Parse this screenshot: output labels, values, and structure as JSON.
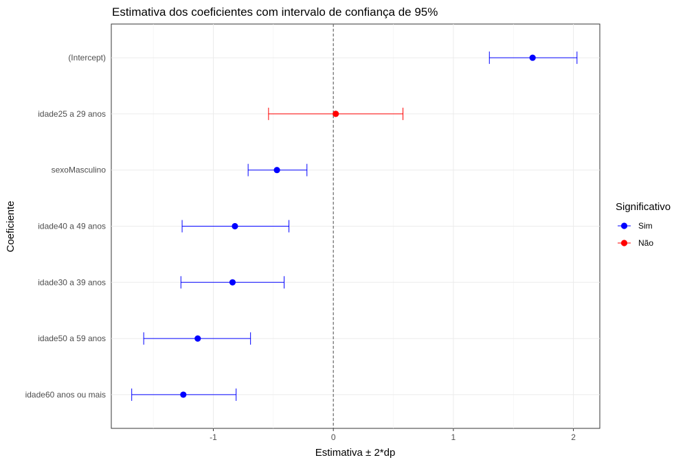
{
  "chart_data": {
    "type": "scatter",
    "subtype": "coefficient-plot-with-error-bars",
    "title": "Estimativa dos coeficientes com intervalo de confiança de 95%",
    "xlabel": "Estimativa ± 2*dp",
    "ylabel": "Coeficiente",
    "xlim": [
      -1.85,
      2.22
    ],
    "x_ticks": [
      -1,
      0,
      1,
      2
    ],
    "x_tick_labels": [
      "-1",
      "0",
      "1",
      "2"
    ],
    "reference_line": 0,
    "grid": true,
    "legend": {
      "title": "Significativo",
      "position": "right",
      "entries": [
        {
          "label": "Sim",
          "color": "#0000ff"
        },
        {
          "label": "Não",
          "color": "#ff0000"
        }
      ]
    },
    "points": [
      {
        "coef": "(Intercept)",
        "estimate": 1.66,
        "lower": 1.3,
        "upper": 2.03,
        "significant": "Sim"
      },
      {
        "coef": "idade25 a 29 anos",
        "estimate": 0.02,
        "lower": -0.54,
        "upper": 0.58,
        "significant": "Não"
      },
      {
        "coef": "sexoMasculino",
        "estimate": -0.47,
        "lower": -0.71,
        "upper": -0.22,
        "significant": "Sim"
      },
      {
        "coef": "idade40 a 49 anos",
        "estimate": -0.82,
        "lower": -1.26,
        "upper": -0.37,
        "significant": "Sim"
      },
      {
        "coef": "idade30 a 39 anos",
        "estimate": -0.84,
        "lower": -1.27,
        "upper": -0.41,
        "significant": "Sim"
      },
      {
        "coef": "idade50 a 59 anos",
        "estimate": -1.13,
        "lower": -1.58,
        "upper": -0.69,
        "significant": "Sim"
      },
      {
        "coef": "idade60 anos ou mais",
        "estimate": -1.25,
        "lower": -1.68,
        "upper": -0.81,
        "significant": "Sim"
      }
    ]
  }
}
